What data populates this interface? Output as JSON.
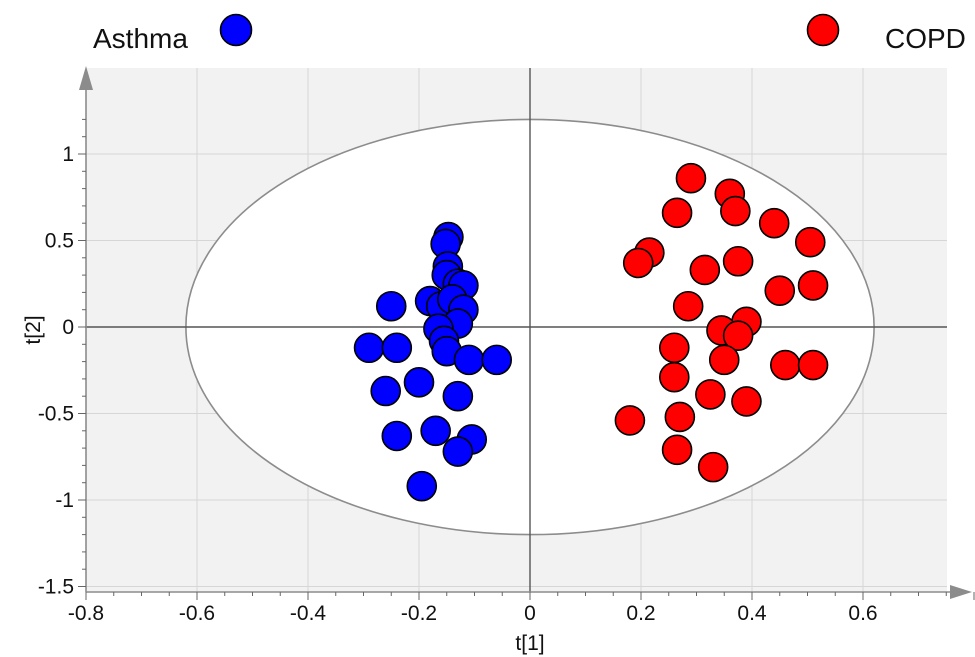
{
  "chart_data": {
    "type": "scatter",
    "title": "",
    "xlabel": "t[1]",
    "ylabel": "t[2]",
    "xlim": [
      -0.8,
      0.8
    ],
    "ylim": [
      -1.5,
      1.25
    ],
    "x_ticks": [
      "-0.8",
      "-0.6",
      "-0.4",
      "-0.2",
      "0",
      "0.2",
      "0.4",
      "0.6"
    ],
    "y_ticks": [
      "-1.5",
      "-1",
      "-0.5",
      "0",
      "0.5",
      "1"
    ],
    "grid": true,
    "legend_position": "top",
    "ellipse": {
      "center": [
        0,
        0
      ],
      "radius_x": 0.62,
      "radius_y": 1.2
    },
    "series": [
      {
        "name": "Asthma",
        "color": "#0000ff",
        "points": [
          [
            -0.147,
            0.52
          ],
          [
            -0.152,
            0.48
          ],
          [
            -0.148,
            0.35
          ],
          [
            -0.15,
            0.3
          ],
          [
            -0.13,
            0.25
          ],
          [
            -0.12,
            0.24
          ],
          [
            -0.18,
            0.15
          ],
          [
            -0.16,
            0.12
          ],
          [
            -0.14,
            0.16
          ],
          [
            -0.12,
            0.1
          ],
          [
            -0.25,
            0.12
          ],
          [
            -0.13,
            0.02
          ],
          [
            -0.165,
            -0.01
          ],
          [
            -0.155,
            -0.08
          ],
          [
            -0.15,
            -0.14
          ],
          [
            -0.29,
            -0.12
          ],
          [
            -0.24,
            -0.12
          ],
          [
            -0.11,
            -0.19
          ],
          [
            -0.06,
            -0.19
          ],
          [
            -0.2,
            -0.32
          ],
          [
            -0.26,
            -0.37
          ],
          [
            -0.13,
            -0.4
          ],
          [
            -0.24,
            -0.63
          ],
          [
            -0.17,
            -0.6
          ],
          [
            -0.105,
            -0.65
          ],
          [
            -0.13,
            -0.72
          ],
          [
            -0.195,
            -0.92
          ]
        ]
      },
      {
        "name": "COPD",
        "color": "#ff0000",
        "points": [
          [
            0.29,
            0.86
          ],
          [
            0.36,
            0.77
          ],
          [
            0.37,
            0.67
          ],
          [
            0.265,
            0.66
          ],
          [
            0.44,
            0.6
          ],
          [
            0.505,
            0.49
          ],
          [
            0.215,
            0.43
          ],
          [
            0.195,
            0.37
          ],
          [
            0.315,
            0.33
          ],
          [
            0.375,
            0.38
          ],
          [
            0.51,
            0.24
          ],
          [
            0.45,
            0.21
          ],
          [
            0.285,
            0.12
          ],
          [
            0.39,
            0.03
          ],
          [
            0.345,
            -0.02
          ],
          [
            0.375,
            -0.05
          ],
          [
            0.26,
            -0.12
          ],
          [
            0.35,
            -0.19
          ],
          [
            0.46,
            -0.22
          ],
          [
            0.51,
            -0.22
          ],
          [
            0.26,
            -0.29
          ],
          [
            0.325,
            -0.39
          ],
          [
            0.39,
            -0.43
          ],
          [
            0.18,
            -0.54
          ],
          [
            0.27,
            -0.52
          ],
          [
            0.265,
            -0.71
          ],
          [
            0.33,
            -0.81
          ]
        ]
      }
    ]
  }
}
